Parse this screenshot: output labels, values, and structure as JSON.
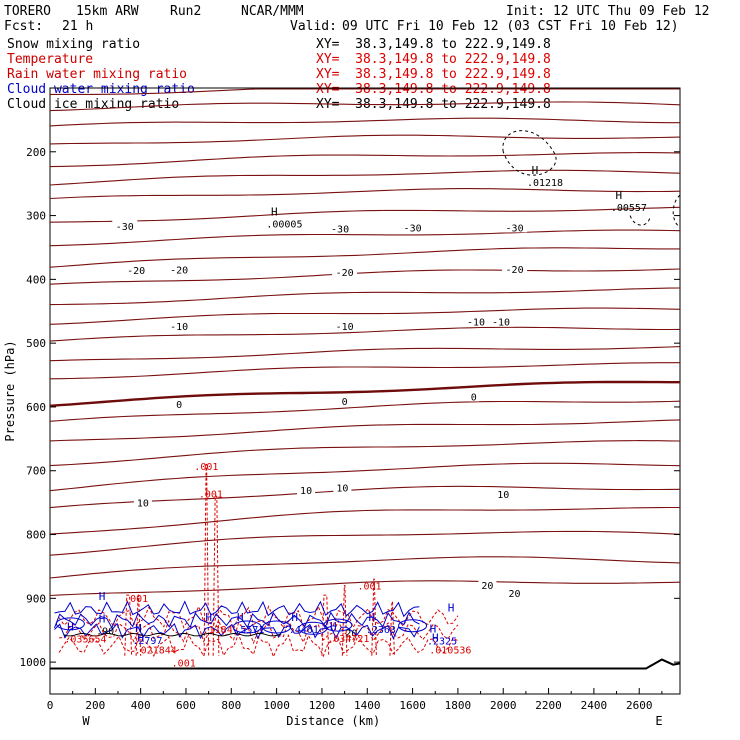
{
  "header": {
    "model": "TORERO",
    "resolution": "15km ARW",
    "run": "Run2",
    "org": "NCAR/MMM",
    "init": "Init: 12 UTC Thu 09 Feb 12",
    "fcst_label": "Fcst:",
    "fcst_value": "21 h",
    "valid_label": "Valid:",
    "valid_value": "09 UTC Fri 10 Feb 12 (03 CST Fri 10 Feb 12)"
  },
  "legend": [
    {
      "name": "Snow mixing ratio",
      "color": "#000000",
      "xy": "XY=  38.3,149.8 to 222.9,149.8"
    },
    {
      "name": "Temperature",
      "color": "#cc0000",
      "xy": "XY=  38.3,149.8 to 222.9,149.8"
    },
    {
      "name": "Rain water mixing ratio",
      "color": "#cc0000",
      "xy": "XY=  38.3,149.8 to 222.9,149.8"
    },
    {
      "name": "Cloud water mixing ratio",
      "color": "#0000cc",
      "xy": "XY=  38.3,149.8 to 222.9,149.8"
    },
    {
      "name": "Cloud ice mixing ratio",
      "color": "#000000",
      "xy": "XY=  38.3,149.8 to 222.9,149.8"
    }
  ],
  "colors": {
    "temperature": "#7a1010",
    "temperature_zero": "#6e0c0c",
    "rain": "#dd0000",
    "cloud_water": "#0000cc",
    "snow": "#000000",
    "terrain": "#000000"
  },
  "chart_data": {
    "type": "cross-section",
    "xlabel": "Distance (km)",
    "ylabel": "Pressure (hPa)",
    "xlim": [
      0,
      2780
    ],
    "ylim": [
      1050,
      100
    ],
    "x_ticks": [
      "0",
      "200",
      "400",
      "600",
      "800",
      "1000",
      "1200",
      "1400",
      "1600",
      "1800",
      "2000",
      "2200",
      "2400",
      "2600"
    ],
    "y_ticks": [
      "200",
      "300",
      "400",
      "500",
      "600",
      "700",
      "800",
      "900",
      "1000"
    ],
    "west_label": "W",
    "east_label": "E",
    "temperature_isotherms": [
      {
        "p_west": 110,
        "p_east": 98,
        "bump": 6
      },
      {
        "p_west": 133,
        "p_east": 126,
        "bump": 8
      },
      {
        "p_west": 160,
        "p_east": 152,
        "bump": 8
      },
      {
        "p_west": 190,
        "p_east": 178,
        "bump": 10
      },
      {
        "p_west": 222,
        "p_east": 204,
        "bump": 10
      },
      {
        "p_west": 250,
        "p_east": 232,
        "bump": 10
      },
      {
        "p_west": 275,
        "p_east": 260,
        "bump": 8
      },
      {
        "p_west": 312,
        "p_east": 289,
        "bump": 8
      },
      {
        "p_west": 345,
        "p_east": 325,
        "bump": 8
      },
      {
        "p_west": 380,
        "p_east": 350,
        "bump": 8
      },
      {
        "p_west": 410,
        "p_east": 383,
        "bump": 8
      },
      {
        "p_west": 440,
        "p_east": 416,
        "bump": 8
      },
      {
        "p_west": 468,
        "p_east": 447,
        "bump": 8
      },
      {
        "p_west": 497,
        "p_east": 476,
        "bump": 8
      },
      {
        "p_west": 530,
        "p_east": 506,
        "bump": 8
      },
      {
        "p_west": 555,
        "p_east": 533,
        "bump": 8
      },
      {
        "p_west": 596,
        "p_east": 560,
        "bump": 6,
        "zero": true
      },
      {
        "p_west": 624,
        "p_east": 589,
        "bump": 10
      },
      {
        "p_west": 655,
        "p_east": 622,
        "bump": 10
      },
      {
        "p_west": 690,
        "p_east": 655,
        "bump": 14
      },
      {
        "p_west": 730,
        "p_east": 690,
        "bump": 18
      },
      {
        "p_west": 760,
        "p_east": 728,
        "bump": 20
      },
      {
        "p_west": 800,
        "p_east": 760,
        "bump": 22
      },
      {
        "p_west": 830,
        "p_east": 800,
        "bump": 22
      },
      {
        "p_west": 868,
        "p_east": 842,
        "bump": 22
      },
      {
        "p_west": 898,
        "p_east": 875,
        "bump": 14
      }
    ],
    "isotherm_labels": [
      {
        "text": "-30",
        "x_km": 330,
        "p": 318
      },
      {
        "text": "-30",
        "x_km": 1280,
        "p": 322
      },
      {
        "text": "-30",
        "x_km": 1600,
        "p": 320
      },
      {
        "text": "-30",
        "x_km": 2050,
        "p": 320
      },
      {
        "text": "-20",
        "x_km": 380,
        "p": 387
      },
      {
        "text": "-20",
        "x_km": 570,
        "p": 386
      },
      {
        "text": "-20",
        "x_km": 1300,
        "p": 390
      },
      {
        "text": "-20",
        "x_km": 2050,
        "p": 385
      },
      {
        "text": "-10",
        "x_km": 570,
        "p": 475
      },
      {
        "text": "-10",
        "x_km": 1300,
        "p": 475
      },
      {
        "text": "-10",
        "x_km": 1880,
        "p": 468
      },
      {
        "text": "-10",
        "x_km": 1990,
        "p": 468
      },
      {
        "text": "0",
        "x_km": 570,
        "p": 597
      },
      {
        "text": "0",
        "x_km": 1300,
        "p": 592
      },
      {
        "text": "0",
        "x_km": 1870,
        "p": 585
      },
      {
        "text": "10",
        "x_km": 410,
        "p": 751
      },
      {
        "text": "10",
        "x_km": 1130,
        "p": 732
      },
      {
        "text": "10",
        "x_km": 1290,
        "p": 728
      },
      {
        "text": "10",
        "x_km": 2000,
        "p": 738
      },
      {
        "text": "20",
        "x_km": 1930,
        "p": 881
      },
      {
        "text": "20",
        "x_km": 2050,
        "p": 893
      },
      {
        "text": "20",
        "x_km": 1330,
        "p": 955
      }
    ],
    "snow_maxima": [
      {
        "marker": "H",
        "value": ".00005",
        "x_km": 990,
        "p": 317
      },
      {
        "marker": "H",
        "value": ".01218",
        "x_km": 2140,
        "p": 252
      },
      {
        "marker": "H",
        "value": ".00557",
        "x_km": 2510,
        "p": 291
      }
    ],
    "rain_labels": [
      {
        "text": ".001",
        "x_km": 690,
        "p": 699
      },
      {
        "text": ".001",
        "x_km": 710,
        "p": 742
      },
      {
        "text": ".001",
        "x_km": 380,
        "p": 906
      },
      {
        "text": ".001",
        "x_km": 1410,
        "p": 886
      },
      {
        "text": ".001",
        "x_km": 590,
        "p": 1007
      }
    ],
    "cloud_water_maxima": [
      {
        "marker": "H",
        "value": ".035654",
        "x_km": 90,
        "p": 968,
        "color": "rain"
      },
      {
        "marker": "H",
        "value": ".2797",
        "x_km": 390,
        "p": 970,
        "color": "cloud_water"
      },
      {
        "marker": "H",
        "value": ".021844",
        "x_km": 400,
        "p": 985,
        "color": "rain"
      },
      {
        "marker": "H",
        "value": ".1184",
        "x_km": 700,
        "p": 953,
        "color": "rain"
      },
      {
        "marker": "H",
        "value": ".5571",
        "x_km": 840,
        "p": 953,
        "color": "cloud_water"
      },
      {
        "marker": "H",
        "value": ".4461",
        "x_km": 1080,
        "p": 953,
        "color": "cloud_water"
      },
      {
        "marker": "H",
        "value": ".034721",
        "x_km": 1250,
        "p": 967,
        "color": "rain"
      },
      {
        "marker": "H",
        "value": ".2363",
        "x_km": 1420,
        "p": 953,
        "color": "cloud_water"
      },
      {
        "marker": "H",
        "value": ".2325",
        "x_km": 1690,
        "p": 971,
        "color": "cloud_water"
      },
      {
        "marker": "H",
        "value": ".010536",
        "x_km": 1700,
        "p": 985,
        "color": "rain"
      },
      {
        "marker": "H",
        "value": "",
        "x_km": 230,
        "p": 920,
        "color": "cloud_water"
      },
      {
        "marker": "H",
        "value": "",
        "x_km": 1770,
        "p": 938,
        "color": "cloud_water"
      },
      {
        "marker": "H",
        "value": ".90",
        "x_km": 230,
        "p": 955,
        "color": "snow"
      }
    ]
  }
}
